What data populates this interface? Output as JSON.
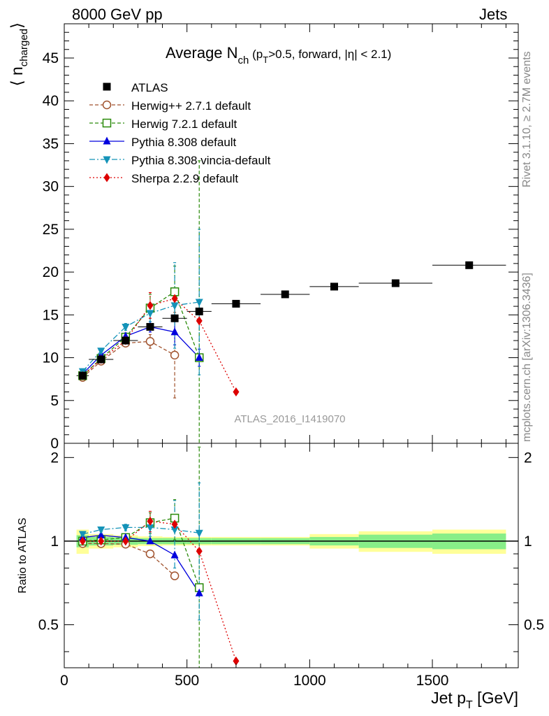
{
  "header": {
    "left": "8000 GeV pp",
    "right": "Jets"
  },
  "side_labels": {
    "top": "Rivet 3.1.10, ≥ 2.7M events",
    "bottom": "mcplots.cern.ch [arXiv:1306.3436]"
  },
  "chart_data": {
    "type": "line",
    "title": "Average N",
    "title_sub": "ch",
    "title_suffix": "(p",
    "title_suffix_sub": "T",
    "title_suffix_tail": ">0.5, forward, |η| < 2.1)",
    "watermark": "ATLAS_2016_I1419070",
    "xlabel": "Jet p",
    "xlabel_sub": "T",
    "xlabel_unit": "[GeV]",
    "xlim": [
      0,
      1850
    ],
    "xticks": [
      0,
      500,
      1000,
      1500
    ],
    "top_panel": {
      "ylabel": "⟨ n",
      "ylabel_sub": "charged",
      "ylabel_close": "⟩",
      "ylim": [
        0,
        49
      ],
      "yticks": [
        0,
        5,
        10,
        15,
        20,
        25,
        30,
        35,
        40,
        45
      ]
    },
    "ratio_panel": {
      "ylabel": "Ratio to ATLAS",
      "ylim": [
        0.35,
        2.25
      ],
      "yticks": [
        0.5,
        1,
        2
      ],
      "ytick_labels": [
        "0.5",
        "1",
        "2"
      ]
    },
    "data": {
      "name": "ATLAS",
      "color": "#000000",
      "x": [
        75,
        150,
        250,
        350,
        450,
        550,
        700,
        900,
        1100,
        1350,
        1650
      ],
      "xerr": [
        25,
        50,
        50,
        50,
        50,
        50,
        100,
        100,
        100,
        150,
        150
      ],
      "y": [
        7.9,
        9.8,
        12.0,
        13.6,
        14.6,
        15.4,
        16.3,
        17.4,
        18.3,
        18.7,
        20.8
      ],
      "band_inner": [
        0.05,
        0.035,
        0.03,
        0.025,
        0.025,
        0.025,
        0.025,
        0.025,
        0.035,
        0.055,
        0.065
      ],
      "band_outer": [
        0.1,
        0.06,
        0.05,
        0.04,
        0.035,
        0.035,
        0.035,
        0.035,
        0.06,
        0.085,
        0.1
      ]
    },
    "series": [
      {
        "name": "Herwig++ 2.7.1 default",
        "color": "#a0522d",
        "marker": "circle-open",
        "dash": "5,3",
        "x": [
          75,
          150,
          250,
          350,
          450
        ],
        "y": [
          7.7,
          9.6,
          11.7,
          11.9,
          10.3
        ],
        "err": [
          0.3,
          0.3,
          0.4,
          0.8,
          5.0
        ],
        "ratio": [
          0.98,
          0.98,
          0.975,
          0.9,
          0.75
        ]
      },
      {
        "name": "Herwig 7.2.1 default",
        "color": "#2a8a0a",
        "marker": "square-open",
        "dash": "5,3",
        "x": [
          75,
          150,
          250,
          350,
          450,
          550
        ],
        "y": [
          7.9,
          9.9,
          12.4,
          15.8,
          17.7,
          10.0
        ],
        "err": [
          0.3,
          0.3,
          0.4,
          1.6,
          3.0,
          23.0
        ],
        "ratio": [
          1.0,
          1.01,
          1.03,
          1.165,
          1.21,
          0.68
        ],
        "ratio_err": [
          0.02,
          0.02,
          0.03,
          0.1,
          0.2,
          1.5
        ]
      },
      {
        "name": "Pythia 8.308 default",
        "color": "#0000dd",
        "marker": "triangle-up",
        "dash": "",
        "x": [
          75,
          150,
          250,
          350,
          450,
          550
        ],
        "y": [
          8.1,
          10.3,
          12.5,
          13.6,
          13.0,
          10.0
        ],
        "err": [
          0.3,
          0.3,
          0.4,
          0.6,
          1.5,
          1.0
        ],
        "ratio": [
          1.03,
          1.05,
          1.03,
          1.0,
          0.89,
          0.65
        ]
      },
      {
        "name": "Pythia 8.308 vincia-default",
        "color": "#1493b8",
        "marker": "triangle-down",
        "dash": "8,3,2,3",
        "x": [
          75,
          150,
          250,
          350,
          450,
          550
        ],
        "y": [
          8.4,
          10.8,
          13.6,
          15.2,
          16.1,
          16.5
        ],
        "err": [
          0.3,
          0.3,
          0.4,
          1.0,
          5.0,
          8.5
        ],
        "ratio": [
          1.06,
          1.1,
          1.12,
          1.12,
          1.1,
          1.07
        ],
        "ratio_err": [
          0.02,
          0.02,
          0.03,
          0.08,
          0.3,
          0.55
        ]
      },
      {
        "name": "Sherpa 2.2.9 default",
        "color": "#dd0000",
        "marker": "diamond",
        "dash": "2,3",
        "x": [
          75,
          150,
          250,
          350,
          450,
          550,
          700
        ],
        "y": [
          7.9,
          9.8,
          12.0,
          16.1,
          16.9,
          14.3,
          6.0
        ],
        "err": [
          0.3,
          0.3,
          0.4,
          1.5,
          1.0,
          0,
          0
        ],
        "ratio": [
          1.0,
          1.0,
          1.0,
          1.18,
          1.15,
          0.92,
          0.37
        ],
        "ratio_err": [
          0.02,
          0.02,
          0.03,
          0.1,
          0.06,
          0,
          0
        ]
      }
    ]
  }
}
